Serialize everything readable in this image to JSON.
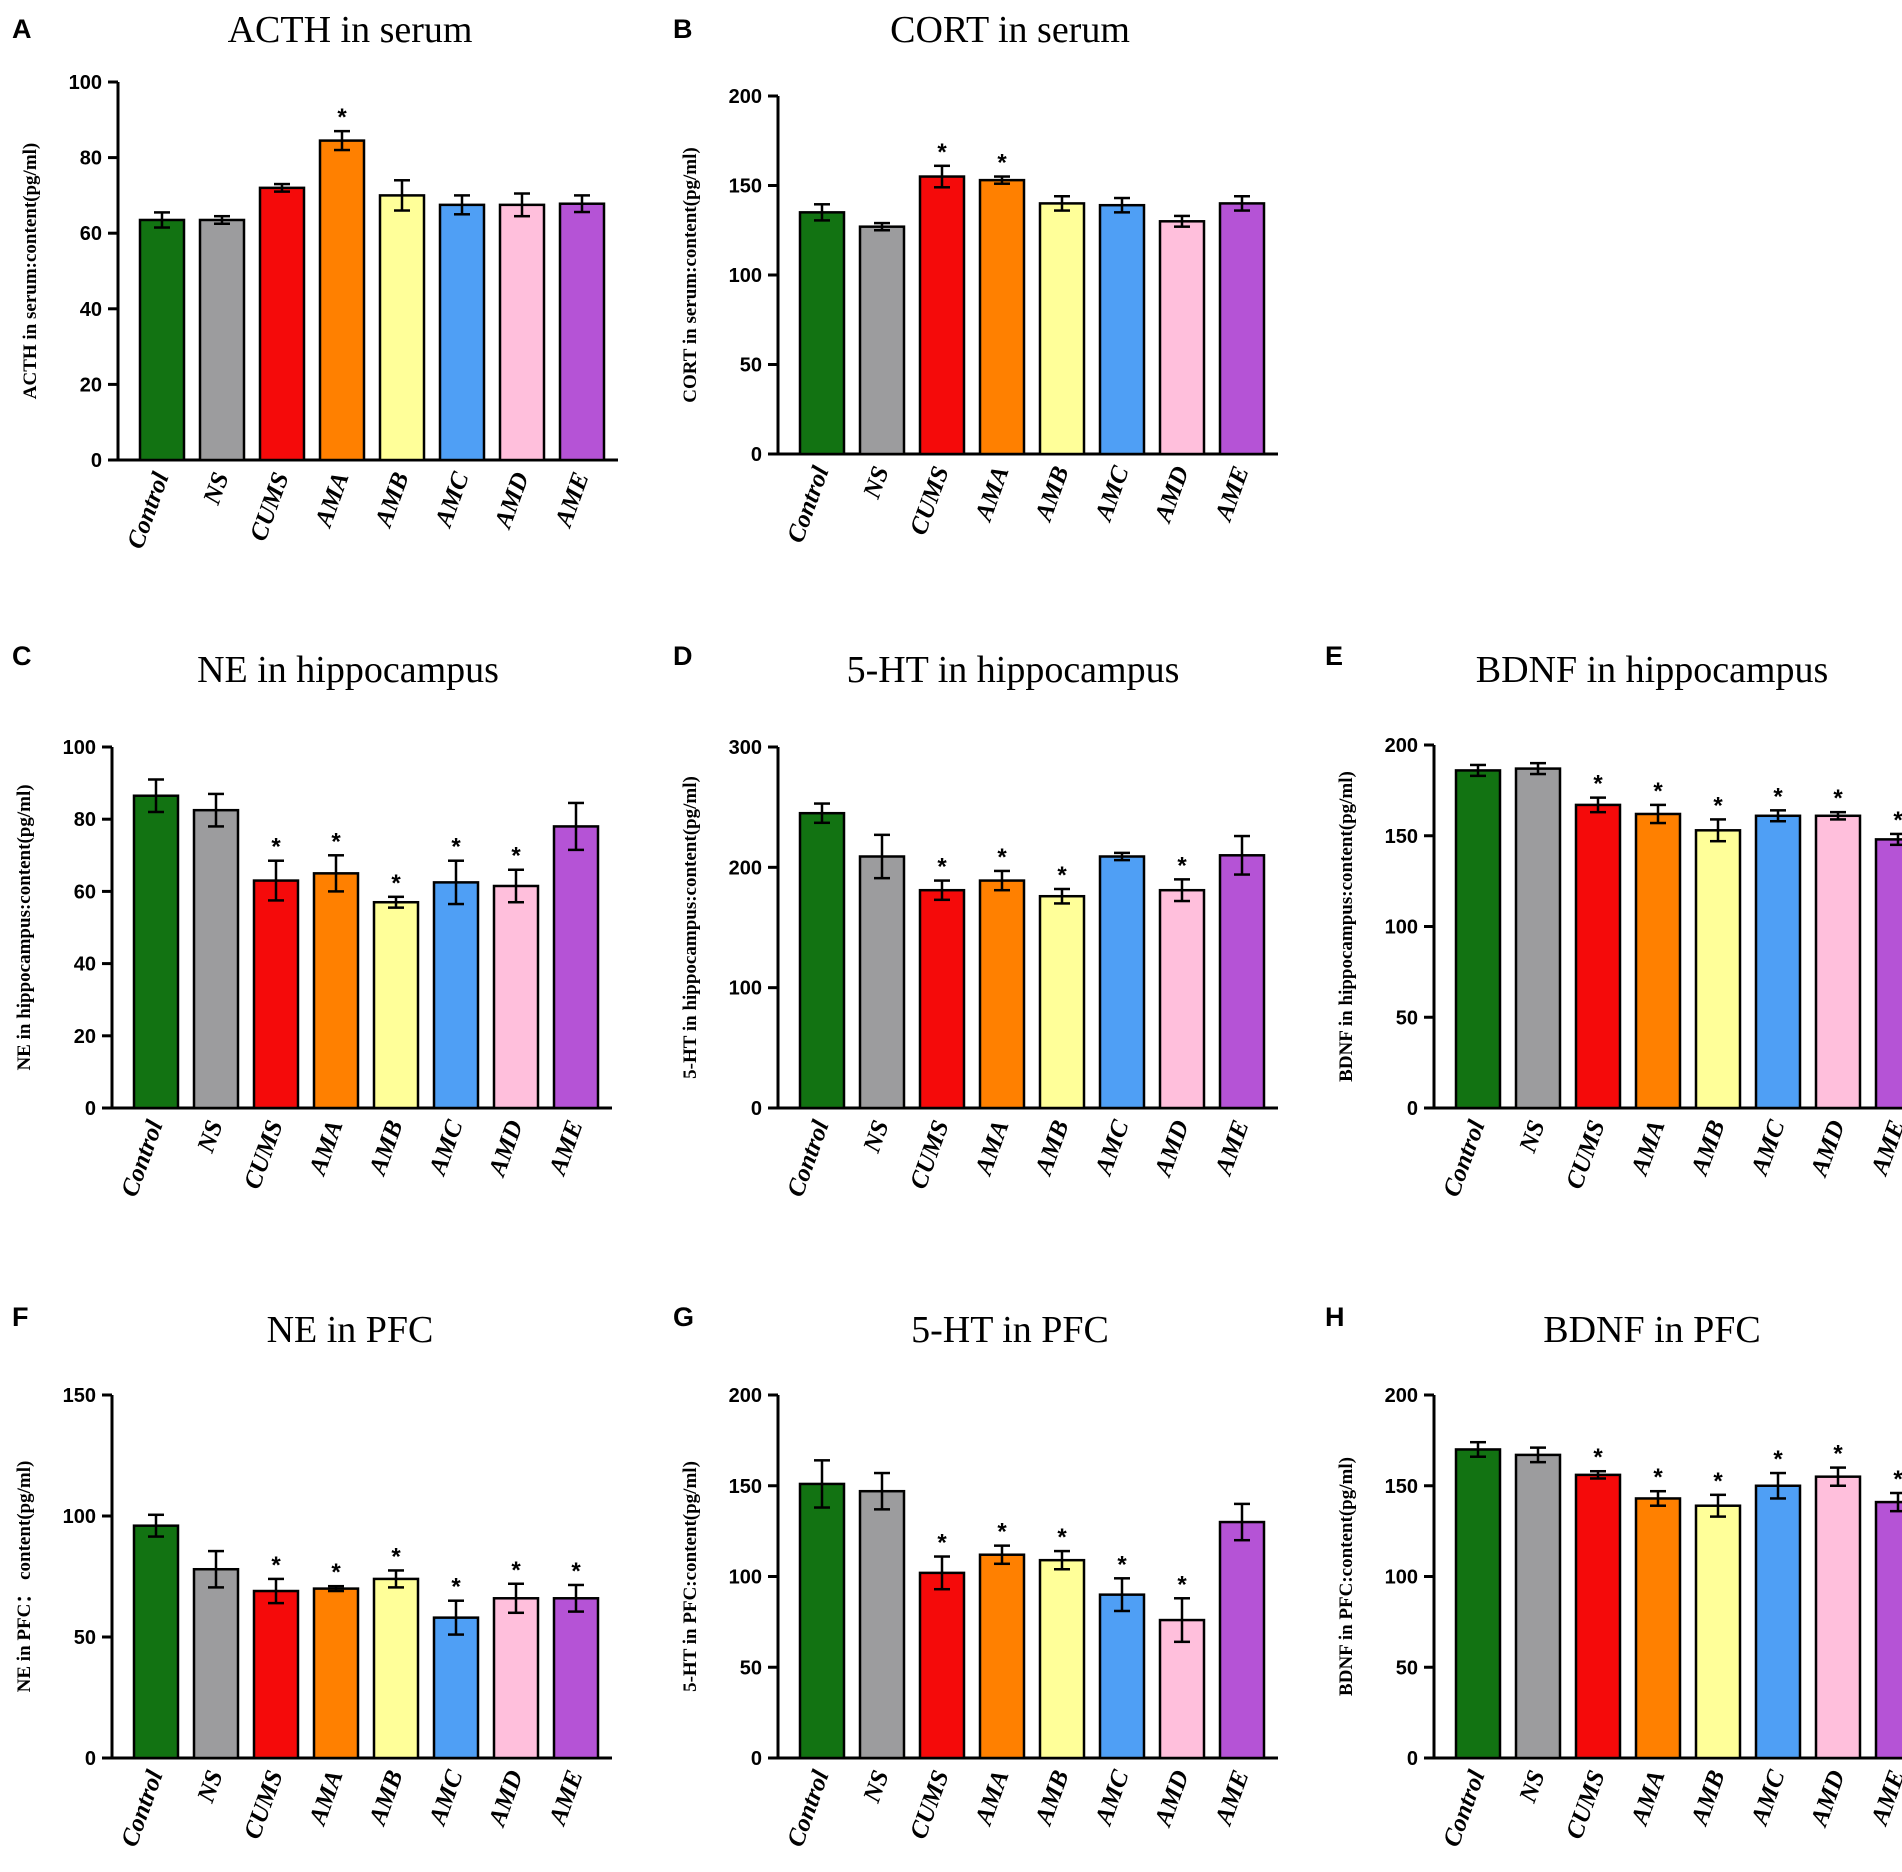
{
  "colors": {
    "Control": "#127312",
    "NS": "#9c9c9e",
    "CUMS": "#f50a0a",
    "AMA": "#ff8000",
    "AMB": "#ffff99",
    "AMC": "#4f9ff5",
    "AMD": "#ffbfdc",
    "AME": "#b553d6"
  },
  "chart_data": [
    {
      "panel": "A",
      "type": "bar",
      "title": "ACTH in serum",
      "ylabel": "ACTH in serum:content(pg/ml)",
      "categories": [
        "Control",
        "NS",
        "CUMS",
        "AMA",
        "AMB",
        "AMC",
        "AMD",
        "AME"
      ],
      "values": [
        63.5,
        63.5,
        72,
        84.5,
        70,
        67.5,
        67.5,
        67.8
      ],
      "errors": [
        2,
        1,
        1,
        2.5,
        4,
        2.5,
        3,
        2.2
      ],
      "significant": [
        false,
        false,
        false,
        true,
        false,
        false,
        false,
        false
      ],
      "ylim": [
        0,
        100
      ],
      "yticks": [
        0,
        20,
        40,
        60,
        80,
        100
      ]
    },
    {
      "panel": "B",
      "type": "bar",
      "title": "CORT in serum",
      "ylabel": "CORT in serum:content(pg/ml)",
      "categories": [
        "Control",
        "NS",
        "CUMS",
        "AMA",
        "AMB",
        "AMC",
        "AMD",
        "AME"
      ],
      "values": [
        135,
        127,
        155,
        153,
        140,
        139,
        130,
        140
      ],
      "errors": [
        4.5,
        2,
        6,
        2,
        4,
        4,
        3,
        4
      ],
      "significant": [
        false,
        false,
        true,
        true,
        false,
        false,
        false,
        false
      ],
      "ylim": [
        0,
        200
      ],
      "yticks": [
        0,
        50,
        100,
        150,
        200
      ]
    },
    {
      "panel": "C",
      "type": "bar",
      "title": "NE in hippocampus",
      "ylabel": "NE in hippocampus:content(pg/ml)",
      "categories": [
        "Control",
        "NS",
        "CUMS",
        "AMA",
        "AMB",
        "AMC",
        "AMD",
        "AME"
      ],
      "values": [
        86.5,
        82.5,
        63,
        65,
        57,
        62.5,
        61.5,
        78
      ],
      "errors": [
        4.5,
        4.5,
        5.5,
        5,
        1.5,
        6,
        4.5,
        6.5
      ],
      "significant": [
        false,
        false,
        true,
        true,
        true,
        true,
        true,
        false
      ],
      "ylim": [
        0,
        100
      ],
      "yticks": [
        0,
        20,
        40,
        60,
        80,
        100
      ]
    },
    {
      "panel": "D",
      "type": "bar",
      "title": "5-HT in hippocampus",
      "ylabel": "5-HT in hippocampus:content(pg/ml)",
      "categories": [
        "Control",
        "NS",
        "CUMS",
        "AMA",
        "AMB",
        "AMC",
        "AMD",
        "AME"
      ],
      "values": [
        245,
        209,
        181,
        189,
        176,
        209,
        181,
        210
      ],
      "errors": [
        8,
        18,
        8,
        8,
        6,
        3,
        9,
        16
      ],
      "significant": [
        false,
        false,
        true,
        true,
        true,
        false,
        true,
        false
      ],
      "ylim": [
        0,
        300
      ],
      "yticks": [
        0,
        100,
        200,
        300
      ]
    },
    {
      "panel": "E",
      "type": "bar",
      "title": "BDNF in hippocampus",
      "ylabel": "BDNF in hippocampus:content(pg/ml)",
      "categories": [
        "Control",
        "NS",
        "CUMS",
        "AMA",
        "AMB",
        "AMC",
        "AMD",
        "AME"
      ],
      "values": [
        186,
        187,
        167,
        162,
        153,
        161,
        161,
        148
      ],
      "errors": [
        3,
        3,
        4,
        5,
        6,
        3,
        2,
        3
      ],
      "significant": [
        false,
        false,
        true,
        true,
        true,
        true,
        true,
        true
      ],
      "ylim": [
        0,
        200
      ],
      "yticks": [
        0,
        50,
        100,
        150,
        200
      ]
    },
    {
      "panel": "F",
      "type": "bar",
      "title": "NE in PFC",
      "ylabel": "NE in PFC： content(pg/ml)",
      "categories": [
        "Control",
        "NS",
        "CUMS",
        "AMA",
        "AMB",
        "AMC",
        "AMD",
        "AME"
      ],
      "values": [
        96,
        78,
        69,
        70,
        74,
        58,
        66,
        66
      ],
      "errors": [
        4.5,
        7.5,
        5,
        1,
        3.5,
        7,
        6,
        5.5
      ],
      "significant": [
        false,
        false,
        true,
        true,
        true,
        true,
        true,
        true
      ],
      "ylim": [
        0,
        150
      ],
      "yticks": [
        0,
        50,
        100,
        150
      ]
    },
    {
      "panel": "G",
      "type": "bar",
      "title": "5-HT in PFC",
      "ylabel": "5-HT in PFC:content(pg/ml)",
      "categories": [
        "Control",
        "NS",
        "CUMS",
        "AMA",
        "AMB",
        "AMC",
        "AMD",
        "AME"
      ],
      "values": [
        151,
        147,
        102,
        112,
        109,
        90,
        76,
        130
      ],
      "errors": [
        13,
        10,
        9,
        5,
        5,
        9,
        12,
        10
      ],
      "significant": [
        false,
        false,
        true,
        true,
        true,
        true,
        true,
        false
      ],
      "ylim": [
        0,
        200
      ],
      "yticks": [
        0,
        50,
        100,
        150,
        200
      ]
    },
    {
      "panel": "H",
      "type": "bar",
      "title": "BDNF in PFC",
      "ylabel": "BDNF in PFC:content(pg/ml)",
      "categories": [
        "Control",
        "NS",
        "CUMS",
        "AMA",
        "AMB",
        "AMC",
        "AMD",
        "AME"
      ],
      "values": [
        170,
        167,
        156,
        143,
        139,
        150,
        155,
        141
      ],
      "errors": [
        4,
        4,
        2,
        4,
        6,
        7,
        5,
        5
      ],
      "significant": [
        false,
        false,
        true,
        true,
        true,
        true,
        true,
        true
      ],
      "ylim": [
        0,
        200
      ],
      "yticks": [
        0,
        50,
        100,
        150,
        200
      ]
    }
  ]
}
